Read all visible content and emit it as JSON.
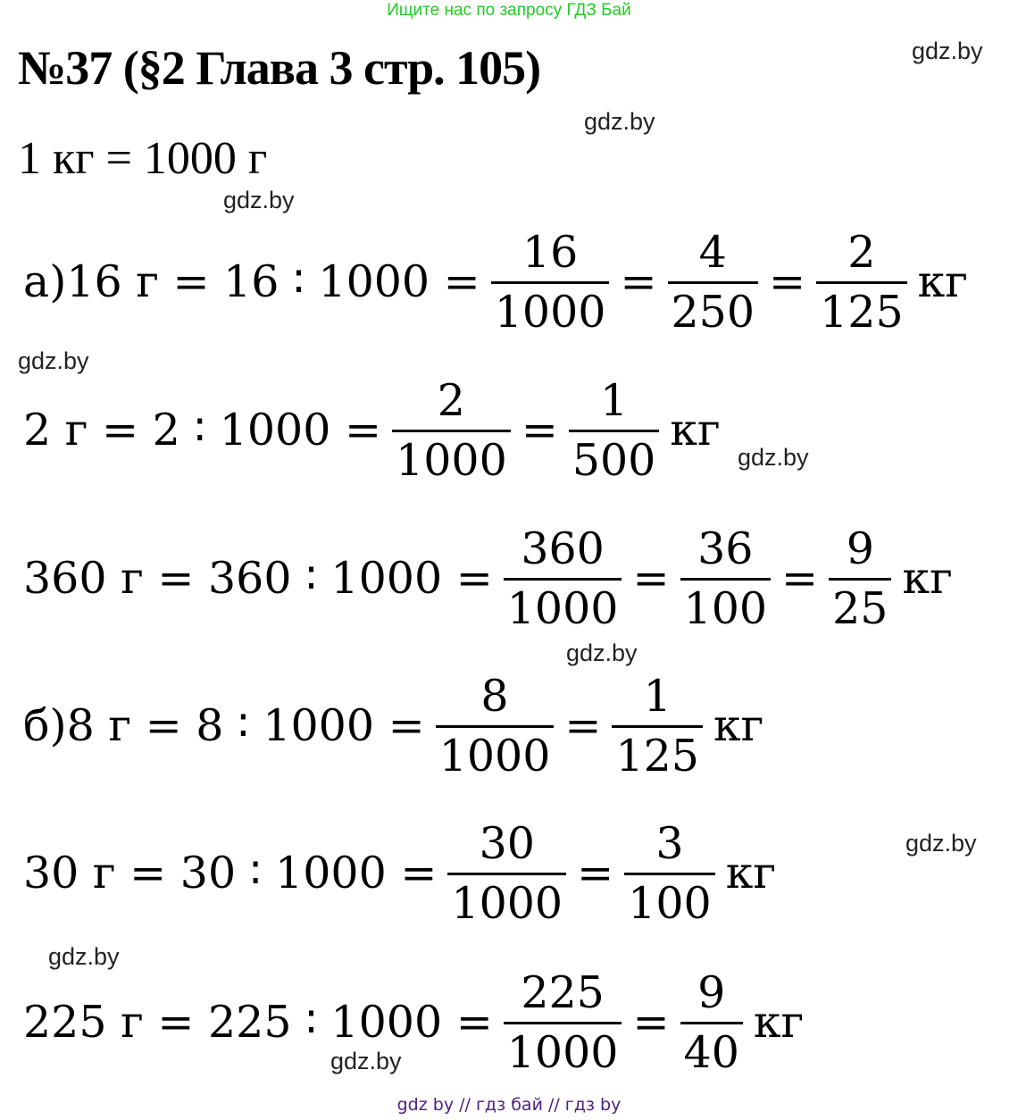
{
  "banner": "Ищите нас по запросу ГДЗ Бай",
  "title": "№37 (§2 Глава 3 стр. 105)",
  "given": "1 кг = 1000 г",
  "watermark": "gdz.by",
  "lines": [
    {
      "parts": [
        {
          "t": "а)16 г = 16 ∶ 1000 ="
        },
        {
          "n": "16",
          "d": "1000"
        },
        {
          "t": "="
        },
        {
          "n": "4",
          "d": "250"
        },
        {
          "t": "="
        },
        {
          "n": "2",
          "d": "125"
        },
        {
          "t": "кг"
        }
      ]
    },
    {
      "parts": [
        {
          "t": "2 г = 2 ∶ 1000 ="
        },
        {
          "n": "2",
          "d": "1000"
        },
        {
          "t": "="
        },
        {
          "n": "1",
          "d": "500"
        },
        {
          "t": "кг"
        }
      ]
    },
    {
      "parts": [
        {
          "t": "360 г = 360 ∶ 1000 ="
        },
        {
          "n": "360",
          "d": "1000"
        },
        {
          "t": "="
        },
        {
          "n": "36",
          "d": "100"
        },
        {
          "t": "="
        },
        {
          "n": "9",
          "d": "25"
        },
        {
          "t": "кг"
        }
      ]
    },
    {
      "parts": [
        {
          "t": "б)8 г = 8 ∶ 1000 ="
        },
        {
          "n": "8",
          "d": "1000"
        },
        {
          "t": "="
        },
        {
          "n": "1",
          "d": "125"
        },
        {
          "t": " кг"
        }
      ]
    },
    {
      "parts": [
        {
          "t": "30 г = 30 ∶ 1000 ="
        },
        {
          "n": "30",
          "d": "1000"
        },
        {
          "t": "="
        },
        {
          "n": "3",
          "d": "100"
        },
        {
          "t": "кг"
        }
      ]
    },
    {
      "parts": [
        {
          "t": "225 г = 225 ∶ 1000 ="
        },
        {
          "n": "225",
          "d": "1000"
        },
        {
          "t": "="
        },
        {
          "n": "9",
          "d": "40"
        },
        {
          "t": "кг"
        }
      ]
    }
  ],
  "footer": "gdz by  //  гдз бай  //  гдз by"
}
